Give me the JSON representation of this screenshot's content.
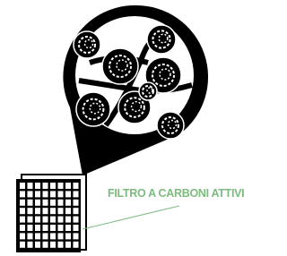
{
  "label": {
    "text": "FILTRO A CARBONI ATTIVI"
  }
}
